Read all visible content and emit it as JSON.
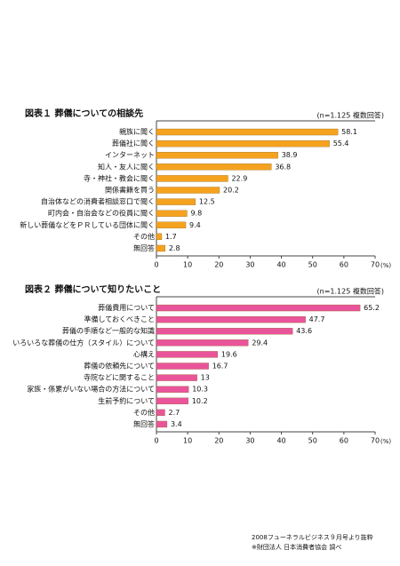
{
  "chart_data": [
    {
      "type": "bar",
      "orientation": "horizontal",
      "title": "図表１ 葬儀についての相談先",
      "subtitle": "(n=1.125 複数回答)",
      "xlabel": "(%)",
      "categories": [
        "親族に聞く",
        "葬儀社に聞く",
        "インターネット",
        "知人・友人に聞く",
        "寺・神社・教会に聞く",
        "関係書籍を買う",
        "自治体などの消費者相談窓口で聞く",
        "町内会・自治会などの役員に聞く",
        "新しい葬儀などをＰＲしている団体に聞く",
        "その他",
        "無回答"
      ],
      "values": [
        58.1,
        55.4,
        38.9,
        36.8,
        22.9,
        20.2,
        12.5,
        9.8,
        9.4,
        1.7,
        2.8
      ],
      "color": "#f5a21e",
      "xlim": [
        0,
        70
      ],
      "xticks": [
        0,
        10,
        20,
        30,
        40,
        50,
        60,
        70
      ]
    },
    {
      "type": "bar",
      "orientation": "horizontal",
      "title": "図表２ 葬儀について知りたいこと",
      "subtitle": "(n=1.125 複数回答)",
      "xlabel": "(%)",
      "categories": [
        "葬儀費用について",
        "準備しておくべきこと",
        "葬儀の手順など一般的な知識",
        "いろいろな葬儀の仕方（スタイル）について",
        "心構え",
        "葬儀の依頼先について",
        "寺院などに関すること",
        "家族・係累がいない場合の方法について",
        "生前予約について",
        "その他",
        "無回答"
      ],
      "values": [
        65.2,
        47.7,
        43.6,
        29.4,
        19.6,
        16.7,
        13.0,
        10.3,
        10.2,
        2.7,
        3.4
      ],
      "color": "#e9549b",
      "xlim": [
        0,
        70
      ],
      "xticks": [
        0,
        10,
        20,
        30,
        40,
        50,
        60,
        70
      ]
    }
  ],
  "notes": [
    "2008フューネラルビジネス９月号より抜粋",
    "※財団法人 日本消費者協会 調べ"
  ]
}
